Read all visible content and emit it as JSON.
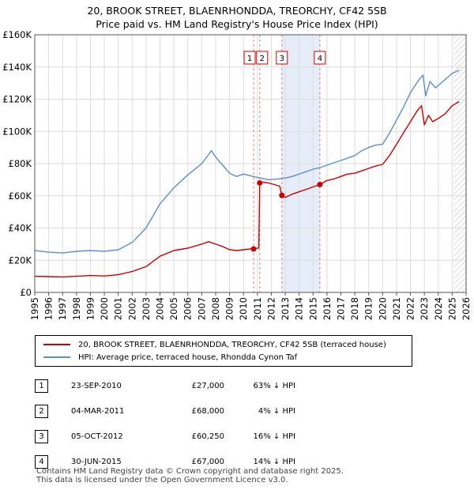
{
  "title_line1": "20, BROOK STREET, BLAENRHONDDA, TREORCHY, CF42 5SB",
  "title_line2": "Price paid vs. HM Land Registry's House Price Index (HPI)",
  "legend": {
    "price_label": "20, BROOK STREET, BLAENRHONDDA, TREORCHY, CF42 5SB (terraced house)",
    "hpi_label": "HPI: Average price, terraced house, Rhondda Cynon Taf"
  },
  "transactions": [
    {
      "num": "1",
      "date": "23-SEP-2010",
      "price": "£27,000",
      "hpi": "63% ↓ HPI"
    },
    {
      "num": "2",
      "date": "04-MAR-2011",
      "price": "£68,000",
      "hpi": "4% ↓ HPI"
    },
    {
      "num": "3",
      "date": "05-OCT-2012",
      "price": "£60,250",
      "hpi": "16% ↓ HPI"
    },
    {
      "num": "4",
      "date": "30-JUN-2015",
      "price": "£67,000",
      "hpi": "14% ↓ HPI"
    }
  ],
  "footer": {
    "line1": "Contains HM Land Registry data © Crown copyright and database right 2025.",
    "line2": "This data is licensed under the Open Government Licence v3.0."
  },
  "colors": {
    "price": "#cc0000",
    "hpi": "#5b8fd1",
    "grid": "#dddddd",
    "shade": "#e6edf8",
    "vline": "#e08080"
  },
  "chart_data": {
    "type": "line",
    "xlim": [
      1995,
      2026
    ],
    "ylim": [
      0,
      160000
    ],
    "x_ticks": [
      "1995",
      "1996",
      "1997",
      "1998",
      "1999",
      "2000",
      "2001",
      "2002",
      "2003",
      "2004",
      "2005",
      "2006",
      "2007",
      "2008",
      "2009",
      "2010",
      "2011",
      "2012",
      "2013",
      "2014",
      "2015",
      "2016",
      "2017",
      "2018",
      "2019",
      "2020",
      "2021",
      "2022",
      "2023",
      "2024",
      "2025",
      "2026"
    ],
    "y_ticks": [
      {
        "value": 0,
        "label": "£0"
      },
      {
        "value": 20000,
        "label": "£20K"
      },
      {
        "value": 40000,
        "label": "£40K"
      },
      {
        "value": 60000,
        "label": "£60K"
      },
      {
        "value": 80000,
        "label": "£80K"
      },
      {
        "value": 100000,
        "label": "£100K"
      },
      {
        "value": 120000,
        "label": "£120K"
      },
      {
        "value": 140000,
        "label": "£140K"
      },
      {
        "value": 160000,
        "label": "£160K"
      }
    ],
    "shaded_ranges": [
      [
        2012.76,
        2015.49
      ]
    ],
    "hatched_from": 2025.1,
    "markers": [
      {
        "label": "1",
        "x": 2010.73,
        "y": 27000
      },
      {
        "label": "2",
        "x": 2011.17,
        "y": 68000
      },
      {
        "label": "3",
        "x": 2012.76,
        "y": 60250
      },
      {
        "label": "4",
        "x": 2015.49,
        "y": 67000
      }
    ],
    "series": [
      {
        "name": "20, BROOK STREET, BLAENRHONDDA, TREORCHY, CF42 5SB (terraced house)",
        "color": "#cc0000",
        "points": [
          [
            1995,
            10000
          ],
          [
            1996,
            9800
          ],
          [
            1997,
            9600
          ],
          [
            1998,
            10000
          ],
          [
            1999,
            10500
          ],
          [
            2000,
            10200
          ],
          [
            2001,
            11000
          ],
          [
            2002,
            13000
          ],
          [
            2003,
            16000
          ],
          [
            2004,
            22500
          ],
          [
            2005,
            26000
          ],
          [
            2006,
            27500
          ],
          [
            2007,
            30000
          ],
          [
            2007.5,
            31500
          ],
          [
            2008,
            30000
          ],
          [
            2008.5,
            28500
          ],
          [
            2009,
            26500
          ],
          [
            2009.5,
            26000
          ],
          [
            2010,
            26500
          ],
          [
            2010.5,
            27000
          ],
          [
            2010.73,
            27000
          ],
          [
            2010.9,
            27300
          ],
          [
            2011.0,
            27500
          ],
          [
            2011.1,
            27600
          ],
          [
            2011.17,
            68000
          ],
          [
            2011.4,
            68500
          ],
          [
            2011.8,
            68000
          ],
          [
            2012.2,
            67000
          ],
          [
            2012.6,
            66000
          ],
          [
            2012.76,
            60250
          ],
          [
            2013.0,
            59000
          ],
          [
            2013.5,
            61000
          ],
          [
            2014.0,
            62500
          ],
          [
            2014.5,
            64000
          ],
          [
            2015.0,
            65500
          ],
          [
            2015.49,
            67000
          ],
          [
            2016.0,
            69500
          ],
          [
            2016.5,
            70500
          ],
          [
            2017.0,
            72000
          ],
          [
            2017.5,
            73500
          ],
          [
            2018.0,
            74000
          ],
          [
            2018.5,
            75500
          ],
          [
            2019.0,
            77000
          ],
          [
            2019.5,
            78500
          ],
          [
            2020.0,
            79500
          ],
          [
            2020.5,
            85000
          ],
          [
            2021.0,
            92000
          ],
          [
            2021.5,
            99000
          ],
          [
            2022.0,
            106000
          ],
          [
            2022.5,
            113000
          ],
          [
            2022.8,
            116000
          ],
          [
            2023.0,
            104000
          ],
          [
            2023.3,
            110000
          ],
          [
            2023.6,
            106000
          ],
          [
            2024.0,
            108000
          ],
          [
            2024.5,
            111000
          ],
          [
            2025.0,
            116000
          ],
          [
            2025.5,
            118500
          ]
        ]
      },
      {
        "name": "HPI: Average price, terraced house, Rhondda Cynon Taf",
        "color": "#5b8fd1",
        "points": [
          [
            1995,
            26000
          ],
          [
            1996,
            25000
          ],
          [
            1997,
            24500
          ],
          [
            1998,
            25500
          ],
          [
            1999,
            26000
          ],
          [
            2000,
            25500
          ],
          [
            2001,
            26500
          ],
          [
            2002,
            31000
          ],
          [
            2003,
            40000
          ],
          [
            2004,
            55000
          ],
          [
            2005,
            65000
          ],
          [
            2006,
            73000
          ],
          [
            2007,
            80000
          ],
          [
            2007.7,
            88000
          ],
          [
            2008,
            84000
          ],
          [
            2008.5,
            79000
          ],
          [
            2009,
            74000
          ],
          [
            2009.5,
            72000
          ],
          [
            2010,
            73500
          ],
          [
            2010.7,
            72000
          ],
          [
            2011.2,
            71000
          ],
          [
            2011.8,
            70000
          ],
          [
            2012.5,
            70500
          ],
          [
            2013,
            71000
          ],
          [
            2013.5,
            72000
          ],
          [
            2014,
            73500
          ],
          [
            2014.5,
            75000
          ],
          [
            2015,
            76500
          ],
          [
            2015.5,
            77500
          ],
          [
            2016,
            79000
          ],
          [
            2016.5,
            80500
          ],
          [
            2017,
            82000
          ],
          [
            2017.5,
            83500
          ],
          [
            2018,
            85000
          ],
          [
            2018.5,
            88000
          ],
          [
            2019,
            90000
          ],
          [
            2019.5,
            91500
          ],
          [
            2020,
            92000
          ],
          [
            2020.5,
            99000
          ],
          [
            2021,
            107000
          ],
          [
            2021.5,
            115000
          ],
          [
            2022,
            124000
          ],
          [
            2022.6,
            132000
          ],
          [
            2022.9,
            135000
          ],
          [
            2023.1,
            122000
          ],
          [
            2023.4,
            131000
          ],
          [
            2023.8,
            127000
          ],
          [
            2024.2,
            130000
          ],
          [
            2024.6,
            133000
          ],
          [
            2025.0,
            136000
          ],
          [
            2025.5,
            138000
          ]
        ]
      }
    ]
  }
}
